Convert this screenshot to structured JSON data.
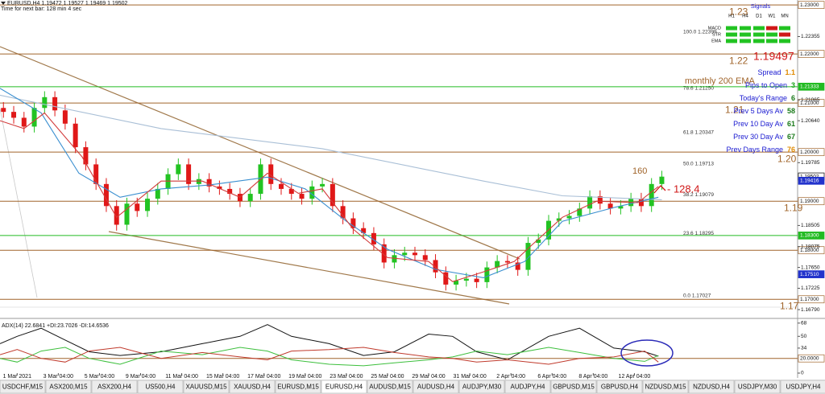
{
  "header": {
    "symbol_line": "EURUSD,H4  1.19472 1.19527 1.19469 1.19502",
    "timer": "Time for next bar: 128 min 4 sec"
  },
  "chart_data": [
    {
      "type": "candlestick",
      "up_color": "#22c322",
      "down_color": "#e01818",
      "xlim": [
        0,
        232.6
      ],
      "ylim": [
        1.1684,
        1.231
      ],
      "x": [
        1,
        4,
        7,
        10,
        13,
        16,
        19,
        22,
        25,
        28,
        31,
        34,
        37,
        40,
        43,
        46,
        49,
        52,
        55,
        58,
        61,
        64,
        67,
        70,
        73,
        76,
        79,
        82,
        85,
        88,
        91,
        94,
        97,
        100,
        103,
        106,
        109,
        112,
        115,
        118,
        121,
        124,
        127,
        130,
        133,
        136,
        139,
        142,
        145,
        148,
        151,
        154,
        157,
        160,
        163,
        166,
        169,
        172,
        175,
        178,
        181,
        184,
        187,
        190,
        193
      ],
      "open": [
        1.209,
        1.2082,
        1.207,
        1.2052,
        1.209,
        1.2112,
        1.2085,
        1.2058,
        1.201,
        1.1975,
        1.1935,
        1.189,
        1.1852,
        1.1895,
        1.188,
        1.1905,
        1.1925,
        1.1955,
        1.1975,
        1.1935,
        1.1945,
        1.193,
        1.1925,
        1.1915,
        1.19,
        1.1915,
        1.1975,
        1.1935,
        1.1925,
        1.1915,
        1.1905,
        1.193,
        1.1935,
        1.189,
        1.1865,
        1.1845,
        1.1835,
        1.1812,
        1.1775,
        1.179,
        1.1795,
        1.179,
        1.178,
        1.1755,
        1.173,
        1.1738,
        1.1742,
        1.1735,
        1.1765,
        1.1778,
        1.1775,
        1.176,
        1.1815,
        1.1822,
        1.186,
        1.1865,
        1.187,
        1.1885,
        1.191,
        1.1895,
        1.1885,
        1.189,
        1.1905,
        1.189,
        1.1935
      ],
      "high": [
        1.2102,
        1.2094,
        1.2082,
        1.2102,
        1.2124,
        1.2124,
        1.2097,
        1.207,
        1.2022,
        1.1987,
        1.1947,
        1.1902,
        1.1907,
        1.1907,
        1.1917,
        1.1937,
        1.1967,
        1.1987,
        1.1987,
        1.1957,
        1.1957,
        1.1942,
        1.1937,
        1.1927,
        1.1927,
        1.1987,
        1.1987,
        1.1947,
        1.1937,
        1.1927,
        1.1942,
        1.1947,
        1.1947,
        1.1902,
        1.1877,
        1.1857,
        1.1847,
        1.1824,
        1.1802,
        1.1807,
        1.1807,
        1.1802,
        1.1792,
        1.1767,
        1.175,
        1.1754,
        1.1754,
        1.1777,
        1.179,
        1.179,
        1.1787,
        1.1827,
        1.1834,
        1.1872,
        1.1877,
        1.1882,
        1.1897,
        1.1922,
        1.1922,
        1.1907,
        1.1902,
        1.1917,
        1.1917,
        1.1947,
        1.1962
      ],
      "low": [
        1.207,
        1.2058,
        1.204,
        1.204,
        1.2078,
        1.2073,
        1.2046,
        1.1998,
        1.1963,
        1.1923,
        1.1878,
        1.184,
        1.184,
        1.1868,
        1.1868,
        1.1893,
        1.1913,
        1.1943,
        1.1923,
        1.1923,
        1.1918,
        1.1913,
        1.1903,
        1.1888,
        1.1888,
        1.1903,
        1.1923,
        1.1913,
        1.1903,
        1.1893,
        1.1893,
        1.1918,
        1.1878,
        1.1853,
        1.1833,
        1.1823,
        1.18,
        1.1763,
        1.1763,
        1.1778,
        1.1778,
        1.1768,
        1.1743,
        1.1718,
        1.1718,
        1.1726,
        1.1723,
        1.1723,
        1.1753,
        1.1763,
        1.1748,
        1.1748,
        1.1803,
        1.181,
        1.1848,
        1.1853,
        1.1858,
        1.1873,
        1.1883,
        1.1873,
        1.1873,
        1.1878,
        1.1878,
        1.1878,
        1.1923
      ],
      "close": [
        1.2082,
        1.207,
        1.2052,
        1.209,
        1.2112,
        1.2085,
        1.2058,
        1.201,
        1.1975,
        1.1935,
        1.189,
        1.1852,
        1.1895,
        1.188,
        1.1905,
        1.1925,
        1.1955,
        1.1975,
        1.1935,
        1.1945,
        1.193,
        1.1925,
        1.1915,
        1.19,
        1.1915,
        1.1975,
        1.1935,
        1.1925,
        1.1915,
        1.1905,
        1.193,
        1.1935,
        1.189,
        1.1865,
        1.1845,
        1.1835,
        1.1812,
        1.1775,
        1.179,
        1.1795,
        1.179,
        1.178,
        1.1755,
        1.173,
        1.1738,
        1.1742,
        1.1735,
        1.1765,
        1.1778,
        1.1775,
        1.176,
        1.1815,
        1.1822,
        1.186,
        1.1865,
        1.187,
        1.1885,
        1.191,
        1.1895,
        1.1885,
        1.189,
        1.1905,
        1.189,
        1.1935,
        1.195
      ],
      "overlays": [
        {
          "color": "#a9bfd6",
          "x": [
            0,
            47,
            94,
            141,
            164,
            193
          ],
          "values": [
            1.2116,
            1.2048,
            1.2007,
            1.1941,
            1.1911,
            1.1903
          ]
        },
        {
          "color": "#3a8fd0",
          "x": [
            0,
            12,
            23,
            35,
            47,
            61,
            78,
            89,
            101,
            113,
            127,
            141,
            153,
            164,
            179,
            192
          ],
          "values": [
            1.213,
            1.208,
            1.1957,
            1.1908,
            1.1925,
            1.1933,
            1.1949,
            1.1925,
            1.1859,
            1.1802,
            1.1761,
            1.1744,
            1.1777,
            1.1859,
            1.1887,
            1.1908
          ]
        },
        {
          "color": "#d23a3a",
          "x": [
            0,
            7,
            13,
            24,
            34,
            47,
            59,
            70,
            78,
            87,
            94,
            103,
            113,
            125,
            132,
            141,
            150,
            155,
            164,
            174,
            186,
            192
          ],
          "values": [
            1.2064,
            1.2048,
            1.208,
            1.199,
            1.1867,
            1.1941,
            1.1941,
            1.1908,
            1.1957,
            1.1916,
            1.1925,
            1.1843,
            1.1785,
            1.1777,
            1.1736,
            1.1756,
            1.1777,
            1.181,
            1.1867,
            1.19,
            1.1897,
            1.193
          ]
        }
      ],
      "xticks": [
        {
          "value": 5,
          "label": "1 Mar 2021"
        },
        {
          "value": 17,
          "label": "3 Mar 04:00"
        },
        {
          "value": 29,
          "label": "5 Mar 04:00"
        },
        {
          "value": 41,
          "label": "9 Mar 04:00"
        },
        {
          "value": 53,
          "label": "11 Mar 04:00"
        },
        {
          "value": 65,
          "label": "15 Mar 04:00"
        },
        {
          "value": 77,
          "label": "17 Mar 04:00"
        },
        {
          "value": 89,
          "label": "19 Mar 04:00"
        },
        {
          "value": 101,
          "label": "23 Mar 04:00"
        },
        {
          "value": 113,
          "label": "25 Mar 04:00"
        },
        {
          "value": 125,
          "label": "29 Mar 04:00"
        },
        {
          "value": 137,
          "label": "31 Mar 04:00"
        },
        {
          "value": 149,
          "label": "2 Apr 04:00"
        },
        {
          "value": 161,
          "label": "6 Apr 04:00"
        },
        {
          "value": 173,
          "label": "8 Apr 04:00"
        },
        {
          "value": 185,
          "label": "12 Apr 04:00"
        }
      ],
      "yticks": [
        1.22355,
        1.21065,
        {
          "value": 1.2064,
          "label": "1.20640"
        },
        1.19785,
        1.18505,
        1.18075,
        {
          "value": 1.1765,
          "label": "1.17650"
        },
        1.17225,
        {
          "value": 1.1679,
          "label": "1.16790"
        }
      ],
      "levels": [
        {
          "value": 1.23,
          "label": "1.23",
          "axis_label": "1.23000"
        },
        {
          "value": 1.22,
          "label": "1.22",
          "axis_label": "1.22000"
        },
        {
          "value": 1.21,
          "label": "1.21",
          "axis_label": "1.21000"
        },
        {
          "value": 1.2,
          "label": "1.20",
          "axis_label": "1.20000"
        },
        {
          "value": 1.19,
          "label": "1.19",
          "axis_label": "1.19000"
        },
        {
          "value": 1.18,
          "axis_label": "1.18000"
        },
        {
          "value": 1.17,
          "label": "1.17",
          "axis_label": "1.17000"
        }
      ],
      "fib": [
        {
          "value": 1.22399,
          "label": "100.0  1.22399"
        },
        {
          "value": 1.2125,
          "label": "78.6  1.21250"
        },
        {
          "value": 1.20347,
          "label": "61.8  1.20347"
        },
        {
          "value": 1.19713,
          "label": "50.0  1.19713"
        },
        {
          "value": 1.19079,
          "label": "38.2  1.19079"
        },
        {
          "value": 1.18295,
          "label": "23.6  1.18295"
        },
        {
          "value": 1.17027,
          "label": "0.0  1.17027"
        }
      ],
      "price_marks": [
        {
          "value": 1.21333,
          "label": "1.21333",
          "color": "#22bb22",
          "line": true
        },
        {
          "value": 1.183,
          "label": "1.18300",
          "color": "#22bb22",
          "line": true
        },
        {
          "value": 1.19502,
          "label": "1.19502",
          "color": "#ffffff",
          "line": false
        },
        {
          "value": 1.19416,
          "label": "1.19416",
          "color": "#2233cc",
          "line": false
        },
        {
          "value": 1.1751,
          "label": "1.17510",
          "color": "#2233cc",
          "line": false
        }
      ],
      "annotations": [
        {
          "text": "monthly 200 EMA",
          "color": "#a0642a"
        },
        {
          "text": "160",
          "color": "#a0642a"
        },
        {
          "text": "- 128.4",
          "color": "#d01818"
        }
      ]
    },
    {
      "type": "line",
      "title": "ADX(14) 22.6841 +DI:23.7026 -DI:14.6536",
      "xlim": [
        0,
        232.6
      ],
      "ylim": [
        0,
        70
      ],
      "yticks": [
        68,
        50,
        34,
        0
      ],
      "level": {
        "value": 20,
        "label": "20.0000"
      },
      "x": [
        0,
        5,
        12,
        19,
        26,
        35,
        47,
        59,
        70,
        78,
        85,
        96,
        106,
        115,
        125,
        132,
        139,
        148,
        160,
        169,
        179,
        188,
        192
      ],
      "series": [
        {
          "color": "#111111",
          "values": [
            40,
            50,
            61,
            45,
            29,
            24,
            29,
            40,
            50,
            66,
            50,
            40,
            24,
            29,
            53,
            50,
            29,
            18,
            50,
            61,
            34,
            29,
            23
          ]
        },
        {
          "color": "#3cbf3c",
          "values": [
            20,
            15,
            30,
            35,
            20,
            12,
            30,
            25,
            35,
            30,
            18,
            12,
            10,
            14,
            18,
            22,
            30,
            25,
            35,
            28,
            20,
            16,
            24
          ]
        },
        {
          "color": "#c0392b",
          "values": [
            25,
            32,
            20,
            15,
            30,
            35,
            20,
            28,
            22,
            18,
            30,
            32,
            35,
            28,
            22,
            20,
            15,
            18,
            12,
            20,
            22,
            30,
            15
          ]
        }
      ]
    }
  ],
  "info_panel": {
    "price": "1.19497",
    "rows": [
      {
        "label": "Spread",
        "value": "1.1",
        "color": "#e08a00"
      },
      {
        "label": "Pips to Open",
        "value": "3",
        "color": "#1aa31a"
      },
      {
        "label": "Today's Range",
        "value": "6",
        "color": "#1a7a1a"
      },
      {
        "label": "Prev 5 Days Av",
        "value": "58",
        "color": "#1a7a1a"
      },
      {
        "label": "Prev 10 Day Av",
        "value": "61",
        "color": "#1a7a1a"
      },
      {
        "label": "Prev 30 Day Av",
        "value": "67",
        "color": "#1a7a1a"
      },
      {
        "label": "Prev Days Range",
        "value": "76",
        "color": "#e08a00"
      }
    ],
    "signals": {
      "title": "Signals",
      "columns": [
        "H1",
        "H4",
        "D1",
        "W1",
        "MN"
      ],
      "rows": [
        {
          "name": "MACD",
          "colors": [
            "#22c322",
            "#22c322",
            "#22c322",
            "#d01818",
            "#22c322"
          ]
        },
        {
          "name": "STR",
          "colors": [
            "#22c322",
            "#22c322",
            "#22c322",
            "#22c322",
            "#d01818"
          ]
        },
        {
          "name": "EMA",
          "colors": [
            "#22c322",
            "#22c322",
            "#22c322",
            "#22c322",
            "#22c322"
          ]
        }
      ]
    }
  },
  "tabs": {
    "active": 7,
    "items": [
      "USDCHF,M15",
      "ASX200,M15",
      "ASX200,H4",
      "US500,H4",
      "XAUUSD,M15",
      "XAUUSD,H4",
      "EURUSD,M15",
      "EURUSD,H4",
      "AUDUSD,M15",
      "AUDUSD,H4",
      "AUDJPY,M30",
      "AUDJPY,H4",
      "GBPUSD,M15",
      "GBPUSD,H4",
      "NZDUSD,M15",
      "NZDUSD,H4",
      "USDJPY,M30",
      "USDJPY,H4"
    ]
  }
}
